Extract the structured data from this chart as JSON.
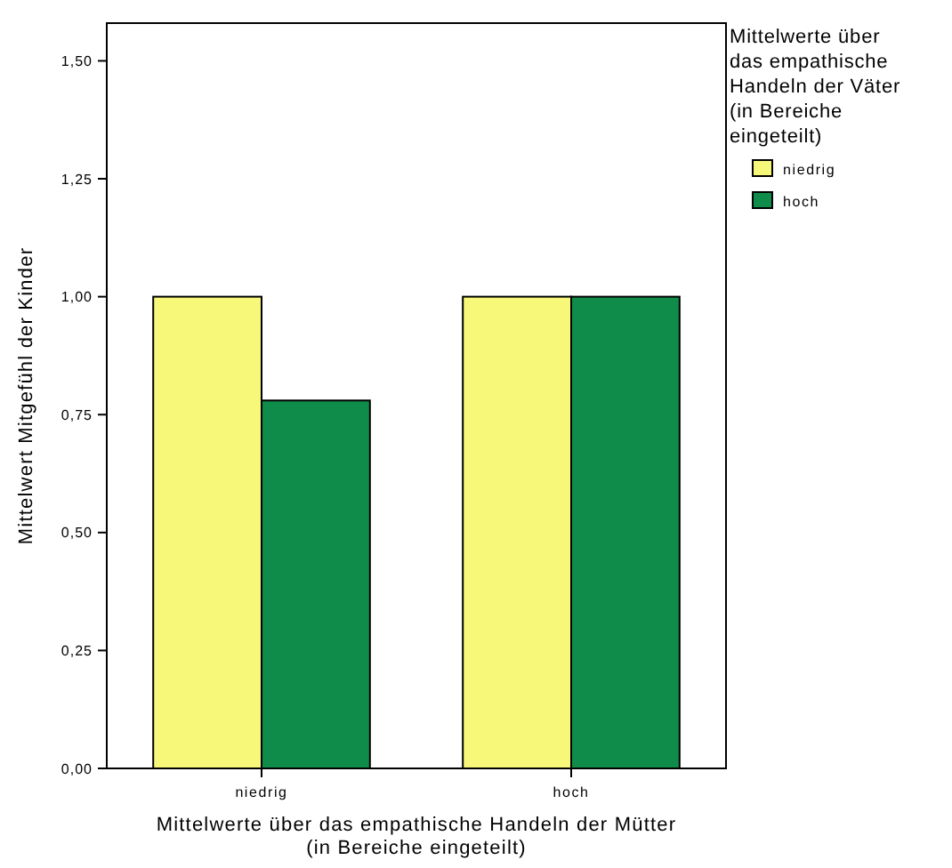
{
  "chart_data": {
    "type": "bar",
    "xlabel": "Mittelwerte über das empathische Handeln der Mütter (in Bereiche eingeteilt)",
    "ylabel": "Mittelwert Mitgefühl der Kinder",
    "legend_title": "Mittelwerte über das empathische Handeln der Väter (in Bereiche eingeteilt)",
    "categories": [
      "niedrig",
      "hoch"
    ],
    "series": [
      {
        "name": "niedrig",
        "color": "#f7f77a",
        "values": [
          1.0,
          1.0
        ]
      },
      {
        "name": "hoch",
        "color": "#0f8c4a",
        "values": [
          0.78,
          1.0
        ]
      }
    ],
    "ylim": [
      0,
      1.58
    ],
    "yticks": [
      {
        "value": 0,
        "label": "0,00"
      },
      {
        "value": 0.25,
        "label": "0,25"
      },
      {
        "value": 0.5,
        "label": "0,50"
      },
      {
        "value": 0.75,
        "label": "0,75"
      },
      {
        "value": 1,
        "label": "1,00"
      },
      {
        "value": 1.25,
        "label": "1,25"
      },
      {
        "value": 1.5,
        "label": "1,50"
      }
    ],
    "legend": "right"
  }
}
